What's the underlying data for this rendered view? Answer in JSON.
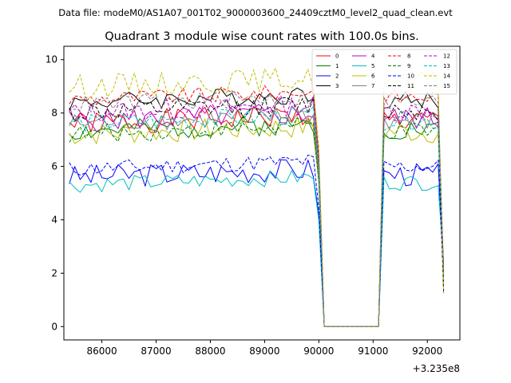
{
  "header": {
    "file_label": "Data file: modeM0/AS1A07_001T02_9000003600_24409cztM0_level2_quad_clean.evt"
  },
  "chart_data": {
    "type": "line",
    "title": "Quadrant 3 module wise count rates with 100.0s bins.",
    "xlabel": "",
    "ylabel": "",
    "offset_label": "+3.235e8",
    "xlim": [
      85300,
      92600
    ],
    "ylim": [
      -0.5,
      10.5
    ],
    "x_ticks": [
      86000,
      87000,
      88000,
      89000,
      90000,
      91000,
      92000
    ],
    "x_tick_labels": [
      "86000",
      "87000",
      "88000",
      "89000",
      "90000",
      "91000",
      "92000"
    ],
    "y_ticks": [
      0,
      2,
      4,
      6,
      8,
      10
    ],
    "y_tick_labels": [
      "0",
      "2",
      "4",
      "6",
      "8",
      "10"
    ],
    "x_start": 85400,
    "x_step": 100,
    "gap": {
      "last_on_x": 89900,
      "resume_x": 91200,
      "off_start_x": 90100,
      "off_end_x": 91100,
      "post_end_x": 92300
    },
    "legend": {
      "position": "top-right",
      "columns": 4
    },
    "series": [
      {
        "name": "0",
        "color": "#ff0000",
        "dash": "solid",
        "base": 7.6,
        "amp": 0.45,
        "seed": 1
      },
      {
        "name": "1",
        "color": "#008000",
        "dash": "solid",
        "base": 7.3,
        "amp": 0.4,
        "seed": 2
      },
      {
        "name": "2",
        "color": "#0000ff",
        "dash": "solid",
        "base": 5.6,
        "amp": 0.45,
        "seed": 3
      },
      {
        "name": "3",
        "color": "#000000",
        "dash": "solid",
        "base": 8.4,
        "amp": 0.35,
        "seed": 4
      },
      {
        "name": "4",
        "color": "#bf00bf",
        "dash": "solid",
        "base": 7.7,
        "amp": 0.45,
        "seed": 5
      },
      {
        "name": "5",
        "color": "#00bfbf",
        "dash": "solid",
        "base": 5.3,
        "amp": 0.3,
        "seed": 6
      },
      {
        "name": "6",
        "color": "#bfbf00",
        "dash": "solid",
        "base": 7.2,
        "amp": 0.45,
        "seed": 7
      },
      {
        "name": "7",
        "color": "#808080",
        "dash": "solid",
        "base": 7.6,
        "amp": 0.4,
        "seed": 8
      },
      {
        "name": "8",
        "color": "#ff0000",
        "dash": "dashed",
        "base": 8.5,
        "amp": 0.3,
        "seed": 9
      },
      {
        "name": "9",
        "color": "#008000",
        "dash": "dashed",
        "base": 7.2,
        "amp": 0.35,
        "seed": 10
      },
      {
        "name": "10",
        "color": "#0000ff",
        "dash": "dashed",
        "base": 5.9,
        "amp": 0.3,
        "seed": 11
      },
      {
        "name": "11",
        "color": "#000000",
        "dash": "dashed",
        "base": 8.0,
        "amp": 0.4,
        "seed": 12
      },
      {
        "name": "12",
        "color": "#bf00bf",
        "dash": "dashed",
        "base": 8.0,
        "amp": 0.4,
        "seed": 13
      },
      {
        "name": "13",
        "color": "#00bfbf",
        "dash": "dashed",
        "base": 7.6,
        "amp": 0.35,
        "seed": 14
      },
      {
        "name": "14",
        "color": "#bfbf00",
        "dash": "dashed",
        "base": 9.0,
        "amp": 0.45,
        "seed": 15
      },
      {
        "name": "15",
        "color": "#808080",
        "dash": "dashed",
        "base": 8.3,
        "amp": 0.35,
        "seed": 16
      }
    ]
  }
}
